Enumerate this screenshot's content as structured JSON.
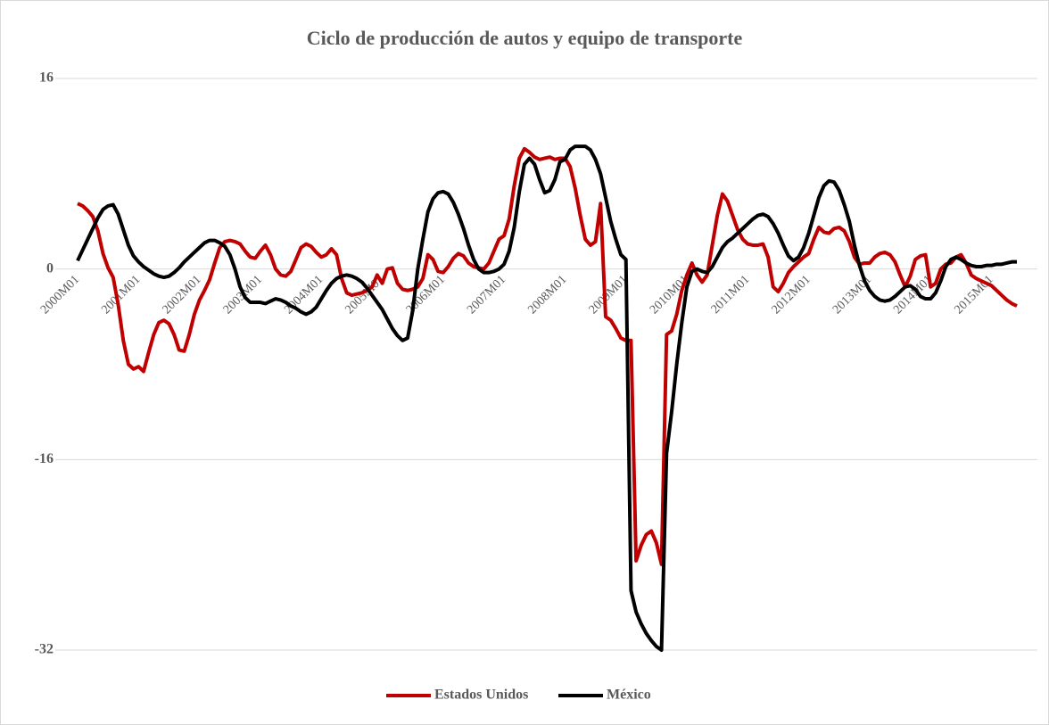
{
  "chart_data": {
    "type": "line",
    "title": "Ciclo de producción de autos y equipo de transporte",
    "categories": [
      "2000M01",
      null,
      null,
      null,
      null,
      null,
      null,
      null,
      null,
      null,
      null,
      null,
      "2001M01",
      null,
      null,
      null,
      null,
      null,
      null,
      null,
      null,
      null,
      null,
      null,
      "2002M01",
      null,
      null,
      null,
      null,
      null,
      null,
      null,
      null,
      null,
      null,
      null,
      "2003M01",
      null,
      null,
      null,
      null,
      null,
      null,
      null,
      null,
      null,
      null,
      null,
      "2004M01",
      null,
      null,
      null,
      null,
      null,
      null,
      null,
      null,
      null,
      null,
      null,
      "2005M01",
      null,
      null,
      null,
      null,
      null,
      null,
      null,
      null,
      null,
      null,
      null,
      "2006M01",
      null,
      null,
      null,
      null,
      null,
      null,
      null,
      null,
      null,
      null,
      null,
      "2007M01",
      null,
      null,
      null,
      null,
      null,
      null,
      null,
      null,
      null,
      null,
      null,
      "2008M01",
      null,
      null,
      null,
      null,
      null,
      null,
      null,
      null,
      null,
      null,
      null,
      "2009M01",
      null,
      null,
      null,
      null,
      null,
      null,
      null,
      null,
      null,
      null,
      null,
      "2010M01",
      null,
      null,
      null,
      null,
      null,
      null,
      null,
      null,
      null,
      null,
      null,
      "2011M01",
      null,
      null,
      null,
      null,
      null,
      null,
      null,
      null,
      null,
      null,
      null,
      "2012M01",
      null,
      null,
      null,
      null,
      null,
      null,
      null,
      null,
      null,
      null,
      null,
      "2013M01",
      null,
      null,
      null,
      null,
      null,
      null,
      null,
      null,
      null,
      null,
      null,
      "2014M01",
      null,
      null,
      null,
      null,
      null,
      null,
      null,
      null,
      null,
      null,
      null,
      "2015M01",
      null,
      null,
      null,
      null,
      null
    ],
    "series": [
      {
        "name": "Estados Unidos",
        "color": "#c00000",
        "values": [
          5.5,
          5.3,
          4.9,
          4.4,
          3.2,
          1.3,
          0.1,
          -0.7,
          -3,
          -6,
          -8,
          -8.4,
          -8.2,
          -8.6,
          -7,
          -5.5,
          -4.5,
          -4.3,
          -4.6,
          -5.5,
          -6.8,
          -6.9,
          -5.5,
          -3.8,
          -2.6,
          -1.8,
          -0.9,
          0.5,
          1.8,
          2.3,
          2.4,
          2.3,
          2.1,
          1.5,
          1,
          0.9,
          1.5,
          2,
          1.2,
          0,
          -0.5,
          -0.6,
          -0.2,
          0.8,
          1.8,
          2.1,
          1.9,
          1.4,
          1,
          1.2,
          1.7,
          1.2,
          -0.8,
          -2,
          -2.2,
          -2.1,
          -2,
          -1.8,
          -1.5,
          -0.5,
          -1.2,
          0,
          0.1,
          -1.2,
          -1.7,
          -1.8,
          -1.7,
          -1.5,
          -0.8,
          1.2,
          0.8,
          -0.2,
          -0.3,
          0.2,
          0.9,
          1.3,
          1.1,
          0.5,
          0.2,
          0.1,
          0,
          0.5,
          1.5,
          2.5,
          2.8,
          4.2,
          7,
          9.3,
          10.1,
          9.8,
          9.4,
          9.2,
          9.3,
          9.4,
          9.2,
          9.3,
          9.3,
          8.6,
          6.8,
          4.5,
          2.5,
          2,
          2.3,
          5.5,
          -4,
          -4.3,
          -5,
          -5.8,
          -6,
          -6,
          -24.5,
          -23.2,
          -22.3,
          -22,
          -23,
          -24.8,
          -5.5,
          -5.2,
          -3.8,
          -1.8,
          -0.5,
          0.5,
          -0.5,
          -1.1,
          -0.5,
          2,
          4.5,
          6.3,
          5.7,
          4.5,
          3.3,
          2.5,
          2.1,
          2,
          2,
          2.1,
          1,
          -1.5,
          -1.9,
          -1.2,
          -0.3,
          0.2,
          0.6,
          1,
          1.3,
          2.5,
          3.5,
          3.1,
          3,
          3.4,
          3.5,
          3.2,
          2.3,
          1,
          0.4,
          0.5,
          0.5,
          1,
          1.3,
          1.4,
          1.2,
          0.6,
          -0.5,
          -1.5,
          -0.6,
          0.8,
          1.1,
          1.2,
          -1.5,
          -1.2,
          0,
          0.4,
          0.5,
          1,
          1.2,
          0.5,
          -0.5,
          -0.8,
          -1,
          -1.2,
          -1.4,
          -1.8,
          -2.2,
          -2.6,
          -2.9,
          -3.1
        ]
      },
      {
        "name": "México",
        "color": "#000000",
        "values": [
          0.7,
          1.6,
          2.5,
          3.4,
          4.3,
          5,
          5.3,
          5.4,
          4.6,
          3.3,
          2,
          1.1,
          0.6,
          0.2,
          -0.1,
          -0.4,
          -0.6,
          -0.7,
          -0.6,
          -0.3,
          0.1,
          0.6,
          1,
          1.4,
          1.8,
          2.2,
          2.4,
          2.4,
          2.2,
          1.9,
          1.2,
          0,
          -1.5,
          -2.4,
          -2.8,
          -2.8,
          -2.8,
          -2.9,
          -2.7,
          -2.5,
          -2.6,
          -2.8,
          -3.1,
          -3.3,
          -3.6,
          -3.8,
          -3.6,
          -3.2,
          -2.5,
          -1.8,
          -1.2,
          -0.8,
          -0.6,
          -0.5,
          -0.6,
          -0.8,
          -1.1,
          -1.6,
          -2.2,
          -2.8,
          -3.4,
          -4.2,
          -5,
          -5.6,
          -6,
          -5.8,
          -3.5,
          0,
          2.5,
          4.8,
          5.9,
          6.4,
          6.5,
          6.3,
          5.6,
          4.6,
          3.4,
          2,
          0.8,
          0,
          -0.3,
          -0.3,
          -0.2,
          0,
          0.4,
          1.5,
          3.5,
          6.5,
          8.8,
          9.3,
          8.8,
          7.5,
          6.4,
          6.6,
          7.5,
          9,
          9.2,
          10,
          10.3,
          10.3,
          10.3,
          10,
          9.2,
          8,
          6,
          4,
          2.5,
          1.2,
          0.8,
          -27,
          -28.8,
          -29.8,
          -30.6,
          -31.2,
          -31.7,
          -32,
          -15.5,
          -12,
          -8,
          -4.5,
          -1.5,
          -0.2,
          0,
          -0.2,
          -0.3,
          0.2,
          1,
          1.8,
          2.3,
          2.6,
          3,
          3.4,
          3.8,
          4.2,
          4.5,
          4.6,
          4.4,
          3.8,
          3,
          2,
          1.1,
          0.7,
          1,
          1.8,
          3,
          4.5,
          6,
          7,
          7.4,
          7.3,
          6.6,
          5.4,
          4,
          2,
          0.3,
          -1,
          -1.8,
          -2.3,
          -2.6,
          -2.7,
          -2.6,
          -2.3,
          -1.9,
          -1.5,
          -1.4,
          -1.7,
          -2.3,
          -2.5,
          -2.5,
          -2,
          -1,
          0.2,
          0.8,
          1,
          0.8,
          0.5,
          0.3,
          0.2,
          0.2,
          0.3,
          0.3,
          0.4,
          0.4,
          0.5,
          0.6,
          0.6
        ]
      }
    ],
    "ylim": [
      -32,
      16
    ],
    "yticks": [
      -32,
      -16,
      0,
      16
    ],
    "grid": true,
    "legend": "bottom"
  }
}
